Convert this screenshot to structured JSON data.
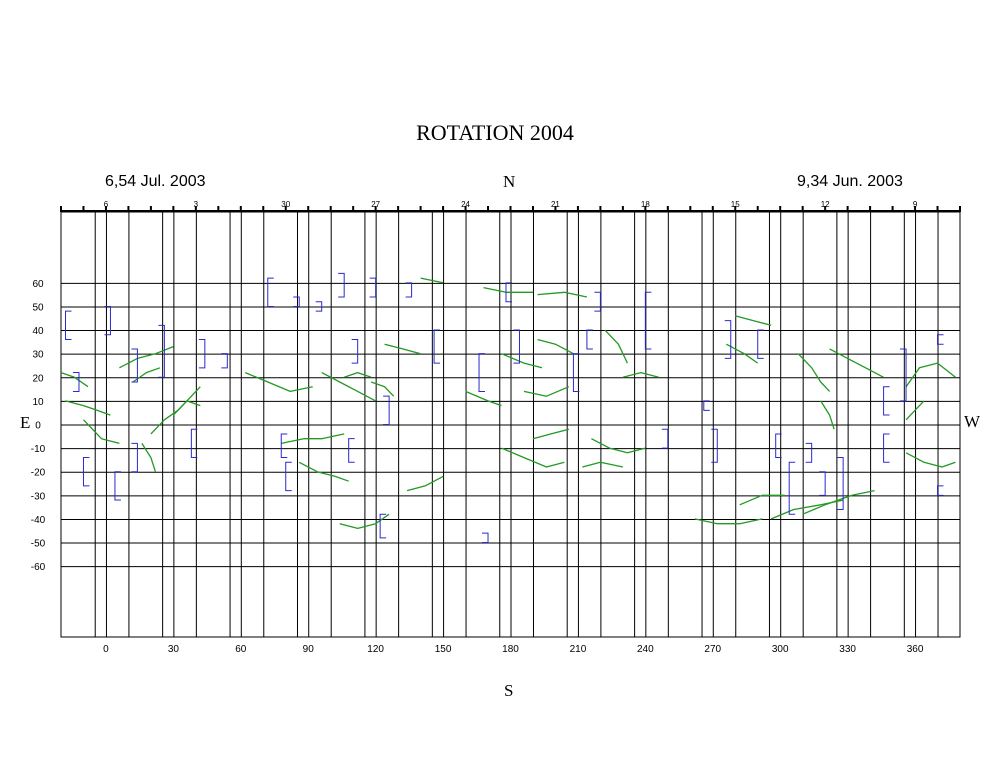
{
  "title": "ROTATION 2004",
  "date_left": "6,54 Jul. 2003",
  "date_right": "9,34 Jun. 2003",
  "compass": {
    "north": "N",
    "south": "S",
    "east": "E",
    "west": "W"
  },
  "colors": {
    "filament": "#229922",
    "bracket": "#2a2ad0",
    "grid": "#000000"
  },
  "top_day_ticks": [
    {
      "label": "6",
      "lon": 0
    },
    {
      "label": "3",
      "lon": 40
    },
    {
      "label": "30",
      "lon": 80
    },
    {
      "label": "27",
      "lon": 120
    },
    {
      "label": "24",
      "lon": 160
    },
    {
      "label": "21",
      "lon": 200
    },
    {
      "label": "18",
      "lon": 240
    },
    {
      "label": "15",
      "lon": 280
    },
    {
      "label": "12",
      "lon": 320
    },
    {
      "label": "9",
      "lon": 360
    }
  ],
  "chart_data": {
    "type": "scatter",
    "title": "ROTATION 2004",
    "x_ticks": [
      0,
      30,
      60,
      90,
      120,
      150,
      180,
      210,
      240,
      270,
      300,
      330,
      360
    ],
    "y_ticks": [
      60,
      50,
      40,
      30,
      20,
      10,
      0,
      -10,
      -20,
      -30,
      -40,
      -50,
      -60
    ],
    "xlim": [
      -20,
      380
    ],
    "ylim": [
      -90,
      90
    ],
    "grid": true,
    "series": [
      {
        "kind": "filament",
        "lines": [
          [
            [
              -20,
              22
            ],
            [
              -14,
              20
            ],
            [
              -8,
              16
            ]
          ],
          [
            [
              -18,
              10
            ],
            [
              -10,
              8
            ],
            [
              -4,
              6
            ],
            [
              2,
              4
            ]
          ],
          [
            [
              -10,
              2
            ],
            [
              -2,
              -6
            ],
            [
              6,
              -8
            ]
          ],
          [
            [
              6,
              24
            ],
            [
              14,
              28
            ],
            [
              22,
              30
            ],
            [
              30,
              33
            ]
          ],
          [
            [
              12,
              18
            ],
            [
              18,
              22
            ],
            [
              24,
              24
            ]
          ],
          [
            [
              20,
              -4
            ],
            [
              26,
              2
            ],
            [
              32,
              6
            ],
            [
              38,
              12
            ],
            [
              42,
              16
            ]
          ],
          [
            [
              30,
              4
            ],
            [
              36,
              10
            ],
            [
              42,
              8
            ]
          ],
          [
            [
              16,
              -8
            ],
            [
              20,
              -14
            ],
            [
              22,
              -20
            ]
          ],
          [
            [
              62,
              22
            ],
            [
              72,
              18
            ],
            [
              82,
              14
            ],
            [
              92,
              16
            ]
          ],
          [
            [
              96,
              22
            ],
            [
              104,
              18
            ],
            [
              112,
              14
            ],
            [
              120,
              10
            ]
          ],
          [
            [
              106,
              20
            ],
            [
              112,
              22
            ],
            [
              118,
              20
            ]
          ],
          [
            [
              78,
              -8
            ],
            [
              88,
              -6
            ],
            [
              96,
              -6
            ],
            [
              106,
              -4
            ]
          ],
          [
            [
              86,
              -16
            ],
            [
              94,
              -20
            ],
            [
              102,
              -22
            ],
            [
              108,
              -24
            ]
          ],
          [
            [
              104,
              -42
            ],
            [
              112,
              -44
            ],
            [
              120,
              -42
            ],
            [
              126,
              -38
            ]
          ],
          [
            [
              124,
              34
            ],
            [
              132,
              32
            ],
            [
              140,
              30
            ]
          ],
          [
            [
              118,
              18
            ],
            [
              124,
              16
            ],
            [
              128,
              12
            ]
          ],
          [
            [
              134,
              -28
            ],
            [
              142,
              -26
            ],
            [
              150,
              -22
            ]
          ],
          [
            [
              140,
              62
            ],
            [
              150,
              60
            ]
          ],
          [
            [
              168,
              58
            ],
            [
              178,
              56
            ],
            [
              190,
              56
            ]
          ],
          [
            [
              192,
              55
            ],
            [
              204,
              56
            ],
            [
              214,
              54
            ]
          ],
          [
            [
              160,
              14
            ],
            [
              170,
              10
            ],
            [
              176,
              8
            ]
          ],
          [
            [
              176,
              30
            ],
            [
              186,
              26
            ],
            [
              194,
              24
            ]
          ],
          [
            [
              192,
              36
            ],
            [
              200,
              34
            ],
            [
              208,
              30
            ]
          ],
          [
            [
              186,
              14
            ],
            [
              196,
              12
            ],
            [
              206,
              16
            ]
          ],
          [
            [
              176,
              -10
            ],
            [
              186,
              -14
            ],
            [
              196,
              -18
            ],
            [
              204,
              -16
            ]
          ],
          [
            [
              190,
              -6
            ],
            [
              198,
              -4
            ],
            [
              206,
              -2
            ]
          ],
          [
            [
              216,
              -6
            ],
            [
              224,
              -10
            ],
            [
              232,
              -12
            ],
            [
              240,
              -10
            ]
          ],
          [
            [
              212,
              -18
            ],
            [
              220,
              -16
            ],
            [
              230,
              -18
            ]
          ],
          [
            [
              222,
              40
            ],
            [
              228,
              34
            ],
            [
              232,
              26
            ]
          ],
          [
            [
              230,
              20
            ],
            [
              238,
              22
            ],
            [
              246,
              20
            ]
          ],
          [
            [
              262,
              -40
            ],
            [
              272,
              -42
            ],
            [
              282,
              -42
            ],
            [
              292,
              -40
            ]
          ],
          [
            [
              282,
              -34
            ],
            [
              292,
              -30
            ],
            [
              302,
              -30
            ]
          ],
          [
            [
              296,
              -40
            ],
            [
              306,
              -36
            ],
            [
              318,
              -34
            ],
            [
              328,
              -32
            ]
          ],
          [
            [
              310,
              -38
            ],
            [
              320,
              -34
            ],
            [
              332,
              -30
            ],
            [
              342,
              -28
            ]
          ],
          [
            [
              276,
              34
            ],
            [
              284,
              30
            ],
            [
              290,
              26
            ]
          ],
          [
            [
              280,
              46
            ],
            [
              288,
              44
            ],
            [
              296,
              42
            ]
          ],
          [
            [
              308,
              30
            ],
            [
              314,
              24
            ],
            [
              318,
              18
            ],
            [
              322,
              14
            ]
          ],
          [
            [
              322,
              32
            ],
            [
              330,
              28
            ],
            [
              338,
              24
            ],
            [
              346,
              20
            ]
          ],
          [
            [
              318,
              10
            ],
            [
              322,
              4
            ],
            [
              324,
              -2
            ]
          ],
          [
            [
              356,
              16
            ],
            [
              362,
              24
            ],
            [
              370,
              26
            ],
            [
              378,
              20
            ]
          ],
          [
            [
              356,
              -12
            ],
            [
              364,
              -16
            ],
            [
              372,
              -18
            ],
            [
              378,
              -16
            ]
          ],
          [
            [
              356,
              2
            ],
            [
              360,
              6
            ],
            [
              364,
              10
            ]
          ]
        ]
      },
      {
        "kind": "bracket",
        "items": [
          [
            -18,
            36,
            48,
            "L"
          ],
          [
            -12,
            14,
            22,
            "R"
          ],
          [
            -10,
            -14,
            -26,
            "L"
          ],
          [
            2,
            38,
            50,
            "R"
          ],
          [
            4,
            -20,
            -32,
            "L"
          ],
          [
            14,
            18,
            32,
            "R"
          ],
          [
            14,
            -8,
            -20,
            "R"
          ],
          [
            26,
            20,
            42,
            "R"
          ],
          [
            38,
            -2,
            -14,
            "L"
          ],
          [
            44,
            24,
            36,
            "R"
          ],
          [
            54,
            24,
            30,
            "R"
          ],
          [
            72,
            50,
            62,
            "L"
          ],
          [
            78,
            -4,
            -14,
            "L"
          ],
          [
            80,
            -16,
            -28,
            "L"
          ],
          [
            86,
            50,
            54,
            "R"
          ],
          [
            96,
            48,
            52,
            "R"
          ],
          [
            106,
            54,
            64,
            "R"
          ],
          [
            108,
            -6,
            -16,
            "L"
          ],
          [
            112,
            26,
            36,
            "R"
          ],
          [
            120,
            54,
            62,
            "R"
          ],
          [
            122,
            -38,
            -48,
            "L"
          ],
          [
            126,
            0,
            12,
            "R"
          ],
          [
            136,
            54,
            60,
            "R"
          ],
          [
            146,
            26,
            40,
            "L"
          ],
          [
            166,
            14,
            30,
            "L"
          ],
          [
            170,
            -46,
            -50,
            "R"
          ],
          [
            178,
            52,
            60,
            "L"
          ],
          [
            184,
            26,
            40,
            "R"
          ],
          [
            208,
            14,
            30,
            "L"
          ],
          [
            214,
            32,
            40,
            "L"
          ],
          [
            220,
            48,
            56,
            "R"
          ],
          [
            240,
            32,
            56,
            "L"
          ],
          [
            250,
            -2,
            -10,
            "R"
          ],
          [
            266,
            10,
            6,
            "L"
          ],
          [
            272,
            -2,
            -16,
            "R"
          ],
          [
            278,
            28,
            44,
            "R"
          ],
          [
            290,
            28,
            40,
            "L"
          ],
          [
            298,
            -4,
            -14,
            "L"
          ],
          [
            304,
            -16,
            -38,
            "L"
          ],
          [
            314,
            -8,
            -16,
            "R"
          ],
          [
            320,
            -20,
            -30,
            "R"
          ],
          [
            328,
            -14,
            -36,
            "R"
          ],
          [
            346,
            4,
            16,
            "L"
          ],
          [
            346,
            -4,
            -16,
            "L"
          ],
          [
            356,
            32,
            10,
            "R"
          ],
          [
            370,
            34,
            38,
            "L"
          ],
          [
            370,
            -26,
            -30,
            "L"
          ]
        ]
      }
    ]
  }
}
